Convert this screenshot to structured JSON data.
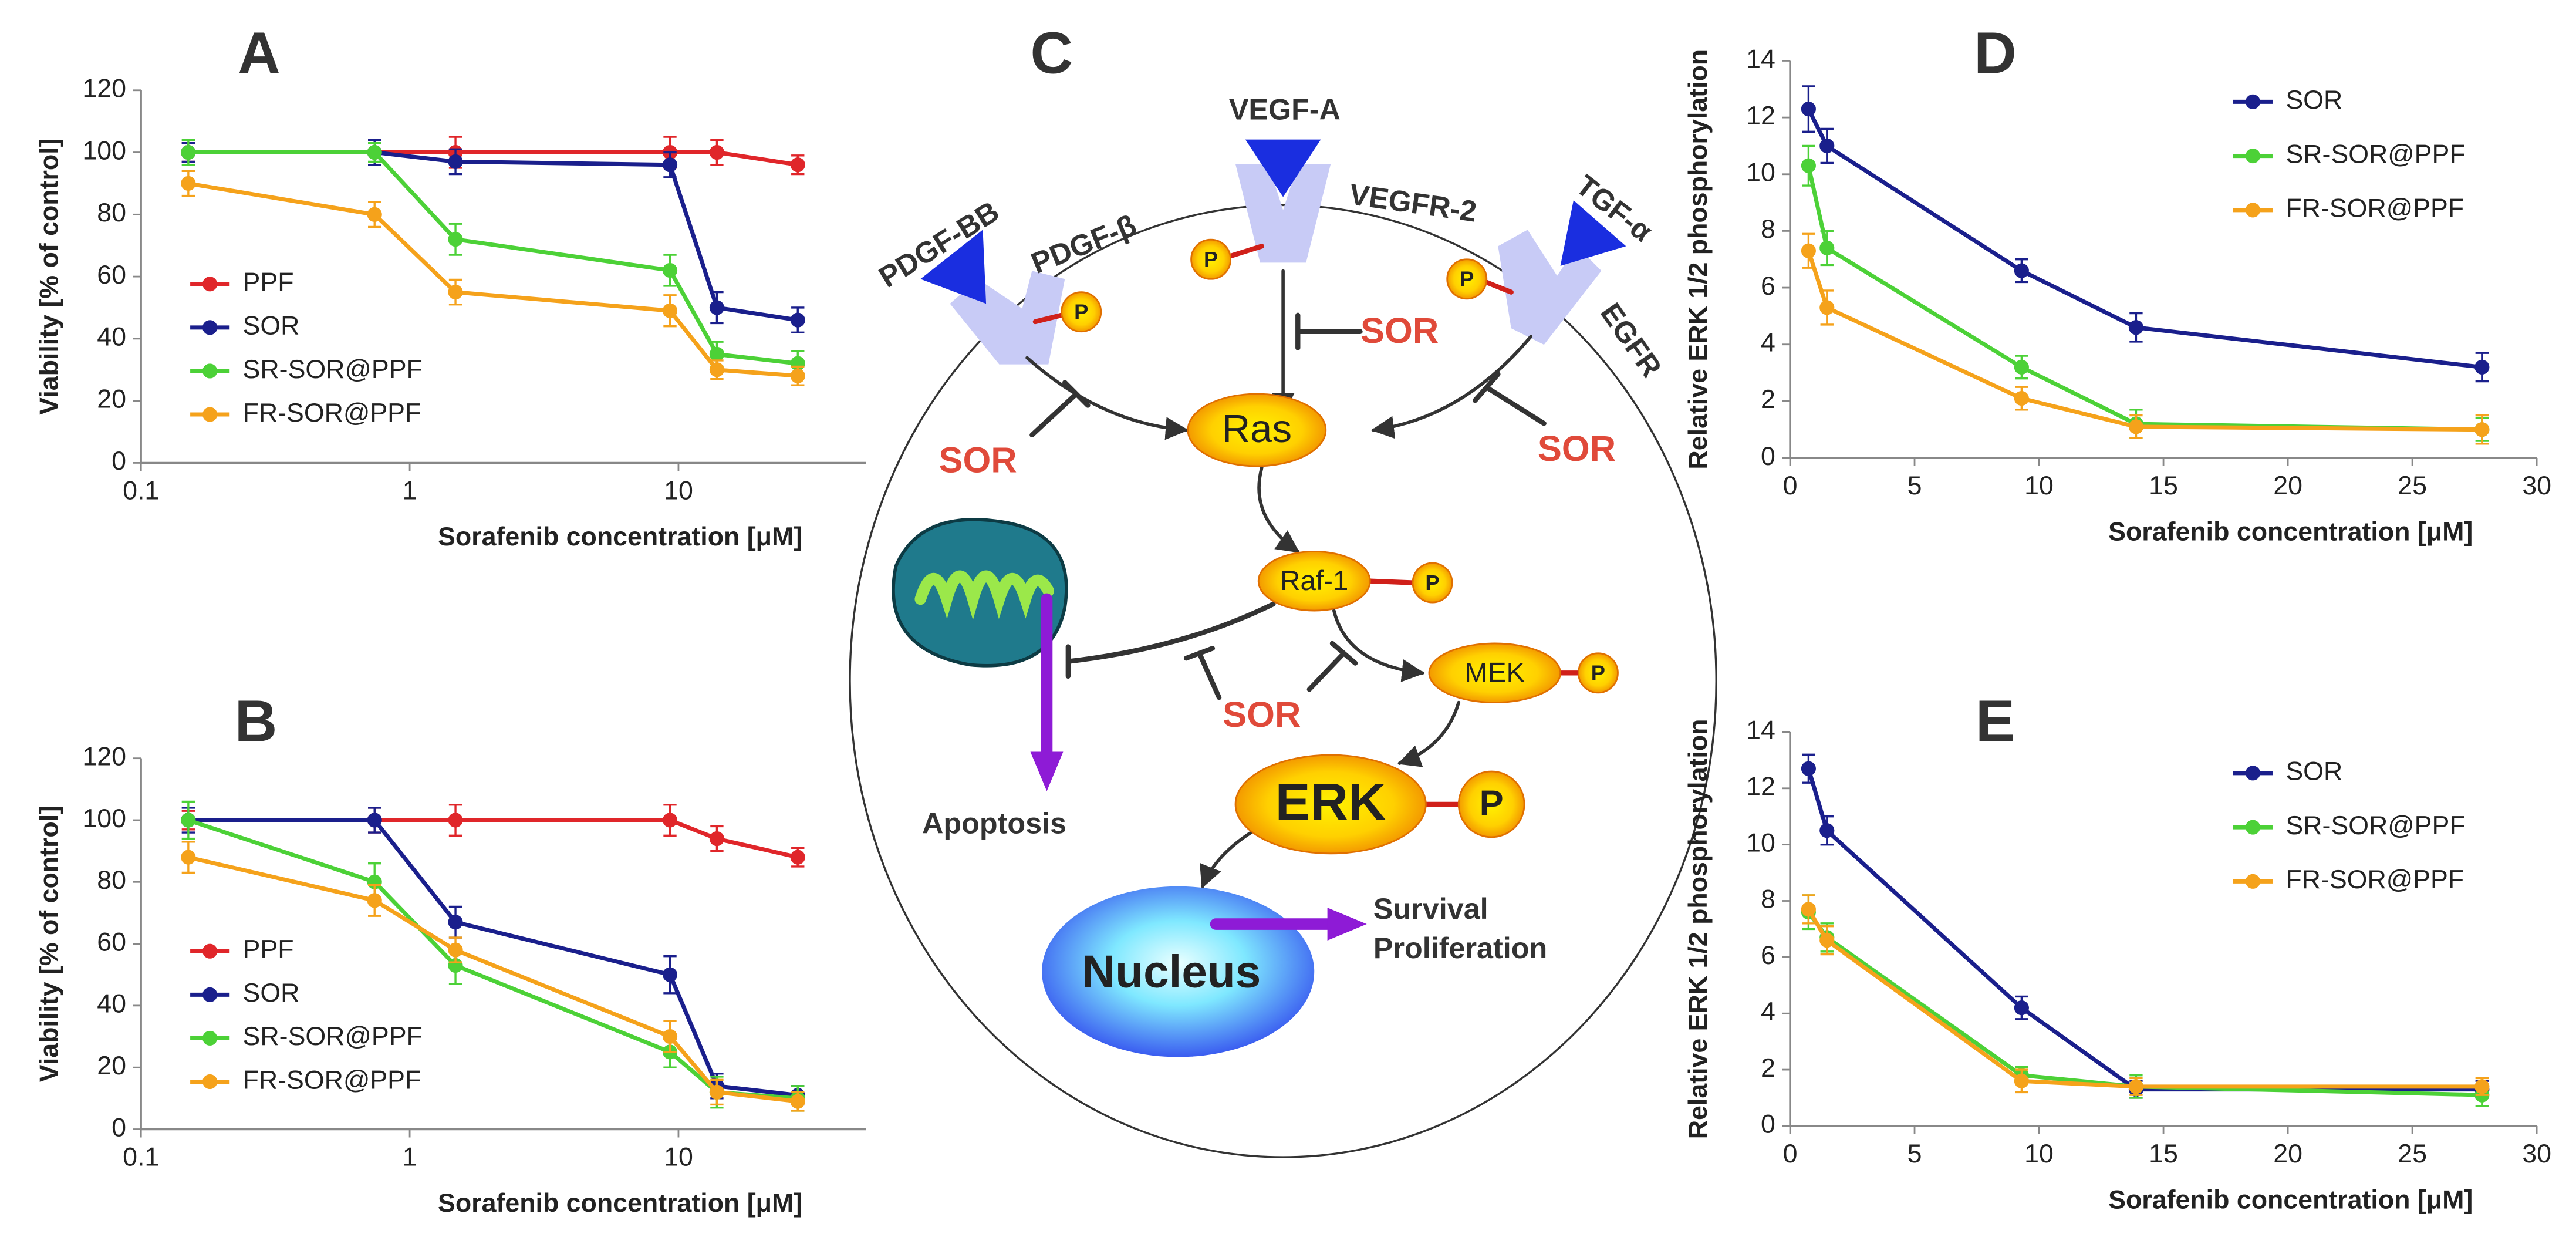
{
  "chart_data": [
    {
      "type": "line",
      "panel_label": "A",
      "xlabel": "Sorafenib concentration [μM]",
      "ylabel": "Viability [% of control]",
      "xscale": "log",
      "xlim": [
        0.1,
        50
      ],
      "xticks": [
        0.1,
        1,
        10
      ],
      "ylim": [
        0,
        120
      ],
      "yticks": [
        0,
        20,
        40,
        60,
        80,
        100,
        120
      ],
      "legend_loc": "center left",
      "x": [
        0.15,
        0.74,
        1.48,
        9.3,
        13.9,
        27.8
      ],
      "series": [
        {
          "name": "PPF",
          "color": "#e0262a",
          "values": [
            100,
            100,
            100,
            100,
            100,
            96
          ],
          "errors": [
            3,
            4,
            5,
            5,
            4,
            3
          ]
        },
        {
          "name": "SOR",
          "color": "#1a1f8c",
          "values": [
            100,
            100,
            97,
            96,
            50,
            46
          ],
          "errors": [
            3,
            4,
            4,
            4,
            5,
            4
          ]
        },
        {
          "name": "SR-SOR@PPF",
          "color": "#4cd137",
          "values": [
            100,
            100,
            72,
            62,
            35,
            32
          ],
          "errors": [
            4,
            3,
            5,
            5,
            4,
            4
          ]
        },
        {
          "name": "FR-SOR@PPF",
          "color": "#f5a21b",
          "values": [
            90,
            80,
            55,
            49,
            30,
            28
          ],
          "errors": [
            4,
            4,
            4,
            5,
            3,
            3
          ]
        }
      ]
    },
    {
      "type": "line",
      "panel_label": "B",
      "xlabel": "Sorafenib concentration [μM]",
      "ylabel": "Viability [% of control]",
      "xscale": "log",
      "xlim": [
        0.1,
        50
      ],
      "xticks": [
        0.1,
        1,
        10
      ],
      "ylim": [
        0,
        120
      ],
      "yticks": [
        0,
        20,
        40,
        60,
        80,
        100,
        120
      ],
      "legend_loc": "center left",
      "x": [
        0.15,
        0.74,
        1.48,
        9.3,
        13.9,
        27.8
      ],
      "series": [
        {
          "name": "PPF",
          "color": "#e0262a",
          "values": [
            100,
            100,
            100,
            100,
            94,
            88
          ],
          "errors": [
            3,
            4,
            5,
            5,
            4,
            3
          ]
        },
        {
          "name": "SOR",
          "color": "#1a1f8c",
          "values": [
            100,
            100,
            67,
            50,
            14,
            11
          ],
          "errors": [
            4,
            4,
            5,
            6,
            4,
            3
          ]
        },
        {
          "name": "SR-SOR@PPF",
          "color": "#4cd137",
          "values": [
            100,
            80,
            53,
            25,
            12,
            10
          ],
          "errors": [
            6,
            6,
            6,
            5,
            5,
            4
          ]
        },
        {
          "name": "FR-SOR@PPF",
          "color": "#f5a21b",
          "values": [
            88,
            74,
            58,
            30,
            12,
            9
          ],
          "errors": [
            5,
            5,
            4,
            5,
            4,
            3
          ]
        }
      ]
    },
    {
      "type": "line",
      "panel_label": "D",
      "xlabel": "Sorafenib concentration [μM]",
      "ylabel": "Relative ERK 1/2 phosphorylation",
      "xlim": [
        0,
        30
      ],
      "xticks": [
        0,
        5,
        10,
        15,
        20,
        25,
        30
      ],
      "ylim": [
        0,
        14
      ],
      "yticks": [
        0,
        2,
        4,
        6,
        8,
        10,
        12,
        14
      ],
      "legend_loc": "upper right",
      "x": [
        0.74,
        1.48,
        9.3,
        13.9,
        27.8
      ],
      "series": [
        {
          "name": "SOR",
          "color": "#1a1f8c",
          "values": [
            12.3,
            11,
            6.6,
            4.6,
            3.2
          ],
          "errors": [
            0.8,
            0.6,
            0.4,
            0.5,
            0.5
          ]
        },
        {
          "name": "SR-SOR@PPF",
          "color": "#4cd137",
          "values": [
            10.3,
            7.4,
            3.2,
            1.2,
            1.0
          ],
          "errors": [
            0.7,
            0.6,
            0.4,
            0.5,
            0.4
          ]
        },
        {
          "name": "FR-SOR@PPF",
          "color": "#f5a21b",
          "values": [
            7.3,
            5.3,
            2.1,
            1.1,
            1.0
          ],
          "errors": [
            0.6,
            0.6,
            0.4,
            0.4,
            0.5
          ]
        }
      ]
    },
    {
      "type": "line",
      "panel_label": "E",
      "xlabel": "Sorafenib concentration [μM]",
      "ylabel": "Relative ERK 1/2 phosphorylation",
      "xlim": [
        0,
        30
      ],
      "xticks": [
        0,
        5,
        10,
        15,
        20,
        25,
        30
      ],
      "ylim": [
        0,
        14
      ],
      "yticks": [
        0,
        2,
        4,
        6,
        8,
        10,
        12,
        14
      ],
      "legend_loc": "upper right",
      "x": [
        0.74,
        1.48,
        9.3,
        13.9,
        27.8
      ],
      "series": [
        {
          "name": "SOR",
          "color": "#1a1f8c",
          "values": [
            12.7,
            10.5,
            4.2,
            1.3,
            1.3
          ],
          "errors": [
            0.5,
            0.5,
            0.4,
            0.3,
            0.3
          ]
        },
        {
          "name": "SR-SOR@PPF",
          "color": "#4cd137",
          "values": [
            7.6,
            6.7,
            1.8,
            1.4,
            1.1
          ],
          "errors": [
            0.6,
            0.5,
            0.3,
            0.4,
            0.4
          ]
        },
        {
          "name": "FR-SOR@PPF",
          "color": "#f5a21b",
          "values": [
            7.7,
            6.6,
            1.6,
            1.4,
            1.4
          ],
          "errors": [
            0.5,
            0.5,
            0.4,
            0.3,
            0.3
          ]
        }
      ]
    }
  ],
  "diagram": {
    "panel_label": "C",
    "ligands": [
      "VEGF-A",
      "PDGF-BB",
      "TGF-α"
    ],
    "receptors": [
      "VEGFR-2",
      "PDGF-β",
      "EGFR"
    ],
    "inhibitor": [
      "SOR",
      "SOR",
      "SOR",
      "SOR"
    ],
    "phospho": [
      "P",
      "P",
      "P",
      "P",
      "P",
      "P"
    ],
    "nodes": [
      "Ras",
      "Raf-1",
      "MEK",
      "ERK",
      "Nucleus"
    ],
    "outcomes": [
      "Apoptosis",
      "Survival",
      "Proliferation"
    ]
  }
}
